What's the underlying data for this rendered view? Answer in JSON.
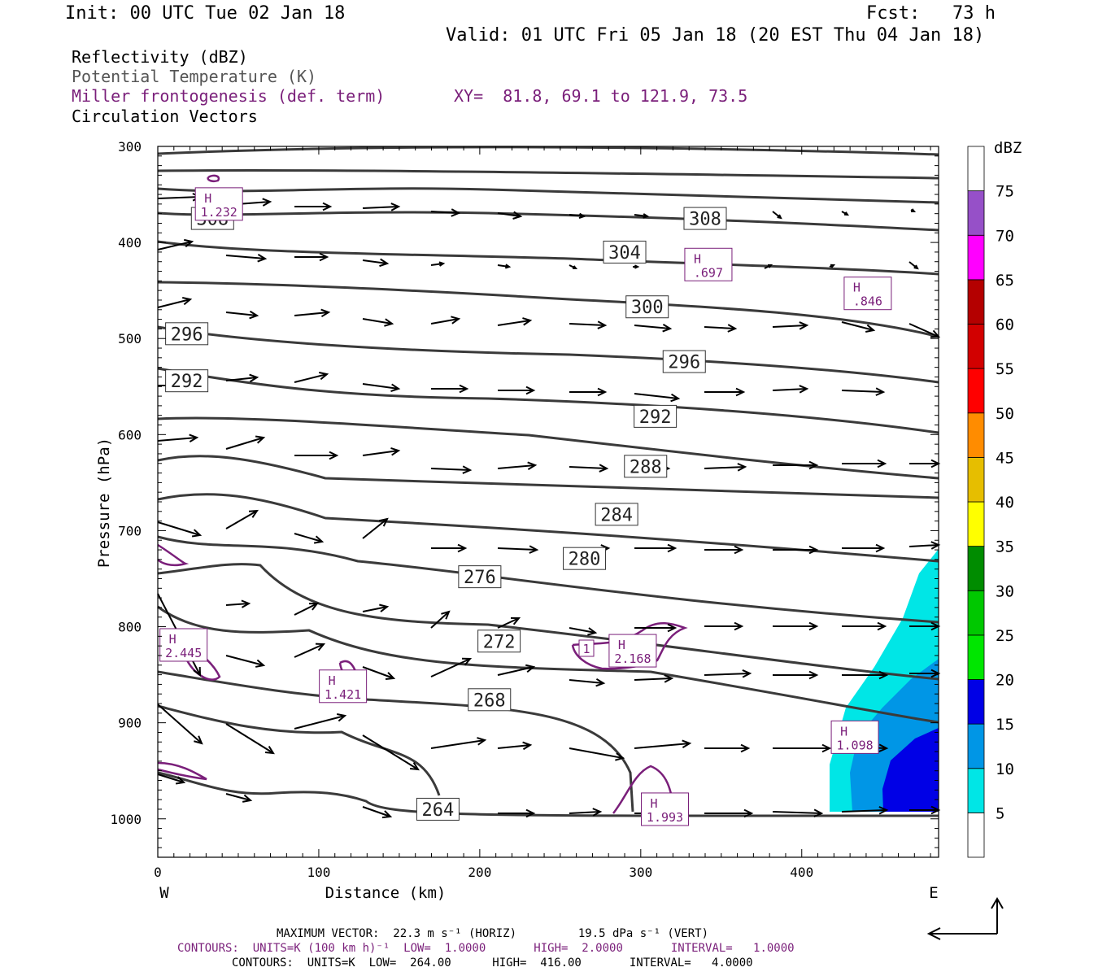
{
  "header": {
    "init": "Init: 00 UTC Tue 02 Jan 18",
    "fcst": "Fcst:   73 h",
    "valid": "Valid: 01 UTC Fri 05 Jan 18 (20 EST Thu 04 Jan 18)"
  },
  "legend": {
    "reflectivity": "Reflectivity (dBZ)",
    "theta": "Potential Temperature (K)",
    "frontogenesis": "Miller frontogenesis (def. term)",
    "xy": "XY=  81.8, 69.1 to 121.9, 73.5",
    "vectors": "Circulation Vectors"
  },
  "footer": {
    "max_vector": "MAXIMUM VECTOR:  22.3 m s⁻¹ (HORIZ)         19.5 dPa s⁻¹ (VERT)",
    "contours1": "CONTOURS:  UNITS=K (100 km h)⁻¹  LOW=  1.0000       HIGH=  2.0000       INTERVAL=   1.0000",
    "contours2": "CONTOURS:  UNITS=K  LOW=  264.00      HIGH=  416.00       INTERVAL=   4.0000"
  },
  "colors": {
    "theta_line": "#3a3a3a",
    "fronto_line": "#7a1f7a"
  },
  "chart_data": {
    "type": "cross-section",
    "xlabel": "Distance (km)",
    "ylabel": "Pressure (hPa)",
    "xlim": [
      0,
      485
    ],
    "ylim": [
      1040,
      300
    ],
    "x_ticks": [
      "0",
      "100",
      "200",
      "300",
      "400"
    ],
    "y_ticks": [
      "300",
      "400",
      "500",
      "600",
      "700",
      "800",
      "900",
      "1000"
    ],
    "x_end_labels": {
      "left": "W",
      "right": "E"
    },
    "theta_labels": [
      {
        "value": "308",
        "x": 340,
        "p": 375
      },
      {
        "value": "308",
        "x": 34,
        "p": 375
      },
      {
        "value": "304",
        "x": 290,
        "p": 410
      },
      {
        "value": "300",
        "x": 304,
        "p": 467
      },
      {
        "value": "296",
        "x": 18,
        "p": 495
      },
      {
        "value": "296",
        "x": 327,
        "p": 524
      },
      {
        "value": "292",
        "x": 18,
        "p": 544
      },
      {
        "value": "292",
        "x": 309,
        "p": 581
      },
      {
        "value": "288",
        "x": 303,
        "p": 633
      },
      {
        "value": "284",
        "x": 285,
        "p": 683
      },
      {
        "value": "280",
        "x": 265,
        "p": 729
      },
      {
        "value": "276",
        "x": 200,
        "p": 748
      },
      {
        "value": "272",
        "x": 212,
        "p": 815
      },
      {
        "value": "268",
        "x": 206,
        "p": 876
      },
      {
        "value": "264",
        "x": 174,
        "p": 990
      }
    ],
    "fronto_maxima": [
      {
        "label": "H",
        "value": "1.232",
        "x": 38,
        "p": 360
      },
      {
        "label": "H",
        "value": ".697",
        "x": 342,
        "p": 423
      },
      {
        "label": "H",
        "value": ".846",
        "x": 441,
        "p": 453
      },
      {
        "label": "H",
        "value": "2.445",
        "x": 16,
        "p": 819
      },
      {
        "label": "H",
        "value": "1.421",
        "x": 115,
        "p": 862
      },
      {
        "label": "H",
        "value": "2.168",
        "x": 295,
        "p": 825
      },
      {
        "label": "H",
        "value": "1.098",
        "x": 433,
        "p": 915
      },
      {
        "label": "H",
        "value": "1.993",
        "x": 315,
        "p": 990
      }
    ],
    "fronto_contour_label": "1",
    "reflectivity_scale": {
      "unit": "dBZ",
      "levels": [
        "5",
        "10",
        "15",
        "20",
        "25",
        "30",
        "35",
        "40",
        "45",
        "50",
        "55",
        "60",
        "65",
        "70",
        "75"
      ],
      "colors": [
        "#ffffff",
        "#00e6e6",
        "#0096e6",
        "#0000e6",
        "#00e600",
        "#00c800",
        "#008c00",
        "#ffff00",
        "#e6be00",
        "#ff8c00",
        "#ff0000",
        "#d20000",
        "#b40000",
        "#ff00ff",
        "#9650c8",
        "#ffffff"
      ]
    }
  }
}
